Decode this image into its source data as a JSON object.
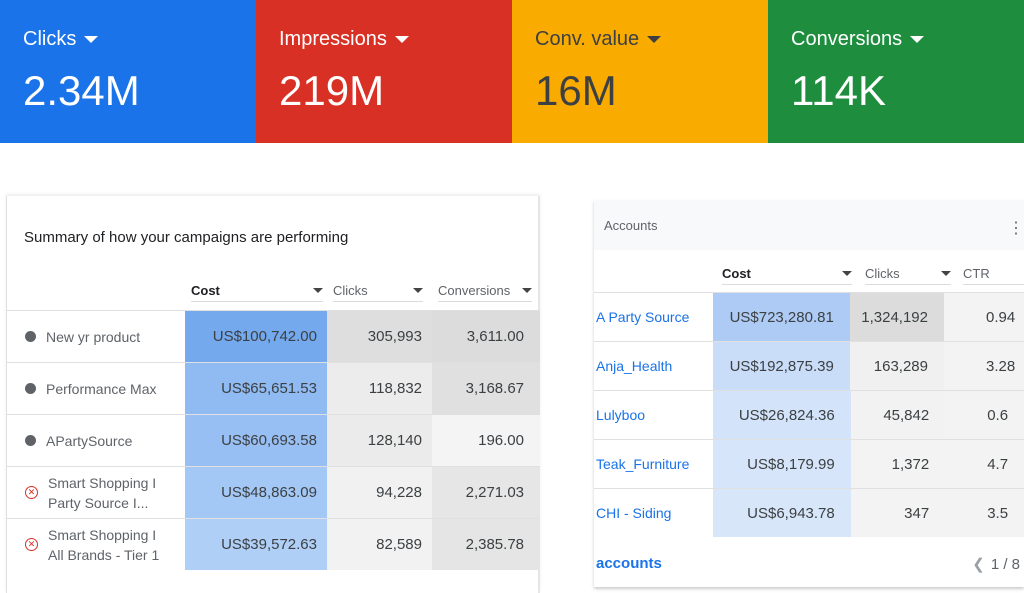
{
  "cards": [
    {
      "label": "Clicks",
      "value": "2.34M",
      "color": "#1a73e8"
    },
    {
      "label": "Impressions",
      "value": "219M",
      "color": "#d93025"
    },
    {
      "label": "Conv. value",
      "value": "16M",
      "color": "#f9ab00",
      "text_color": "#3c4043"
    },
    {
      "label": "Conversions",
      "value": "114K",
      "color": "#1e8e3e"
    }
  ],
  "campaigns": {
    "title": "Summary of how your campaigns are performing",
    "columns": [
      "Cost",
      "Clicks",
      "Conversions"
    ],
    "rows": [
      {
        "name": "New yr product",
        "status": "paused",
        "cost": "US$100,742.00",
        "clicks": "305,993",
        "conversions": "3,611.00"
      },
      {
        "name": "Performance Max",
        "status": "paused",
        "cost": "US$65,651.53",
        "clicks": "118,832",
        "conversions": "3,168.67"
      },
      {
        "name": "APartySource",
        "status": "paused",
        "cost": "US$60,693.58",
        "clicks": "128,140",
        "conversions": "196.00"
      },
      {
        "name": "Smart Shopping I Party Source I...",
        "status": "removed",
        "cost": "US$48,863.09",
        "clicks": "94,228",
        "conversions": "2,271.03"
      },
      {
        "name": "Smart Shopping I All Brands - Tier 1",
        "status": "removed",
        "cost": "US$39,572.63",
        "clicks": "82,589",
        "conversions": "2,385.78"
      }
    ]
  },
  "accounts": {
    "title": "Accounts",
    "columns": [
      "Cost",
      "Clicks",
      "CTR"
    ],
    "rows": [
      {
        "name": "A Party Source",
        "cost": "US$723,280.81",
        "clicks": "1,324,192",
        "ctr": "0.94"
      },
      {
        "name": "Anja_Health",
        "cost": "US$192,875.39",
        "clicks": "163,289",
        "ctr": "3.28"
      },
      {
        "name": "Lulyboo",
        "cost": "US$26,824.36",
        "clicks": "45,842",
        "ctr": "0.6"
      },
      {
        "name": "Teak_Furniture",
        "cost": "US$8,179.99",
        "clicks": "1,372",
        "ctr": "4.7"
      },
      {
        "name": "CHI - Siding",
        "cost": "US$6,943.78",
        "clicks": "347",
        "ctr": "3.5"
      }
    ],
    "footer_link": "accounts",
    "pager": "1 / 8"
  }
}
